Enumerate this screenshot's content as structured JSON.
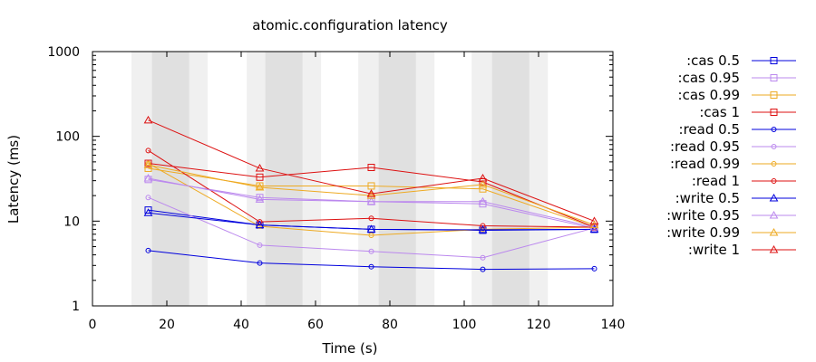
{
  "chart_data": {
    "type": "line",
    "title": "atomic.configuration latency",
    "xlabel": "Time (s)",
    "ylabel": "Latency (ms)",
    "xlim": [
      0,
      140
    ],
    "ylim": [
      1,
      1000
    ],
    "yscale": "log",
    "xticks": [
      "0",
      "20",
      "40",
      "60",
      "80",
      "100",
      "120",
      "140"
    ],
    "yticks": [
      "1",
      "10",
      "100",
      "1000"
    ],
    "grid": false,
    "legend_position": "right",
    "shaded_bands": [
      {
        "x0": 10.5,
        "x1": 31,
        "shade": "light"
      },
      {
        "x0": 16,
        "x1": 26,
        "shade": "dark"
      },
      {
        "x0": 41.5,
        "x1": 61.5,
        "shade": "light"
      },
      {
        "x0": 46.5,
        "x1": 56.5,
        "shade": "dark"
      },
      {
        "x0": 71.5,
        "x1": 92,
        "shade": "light"
      },
      {
        "x0": 77,
        "x1": 87,
        "shade": "dark"
      },
      {
        "x0": 102,
        "x1": 122.5,
        "shade": "light"
      },
      {
        "x0": 107.5,
        "x1": 117.5,
        "shade": "dark"
      }
    ],
    "series": [
      {
        "name": ":cas 0.5",
        "color": "#0000dd",
        "marker": "square",
        "points": [
          [
            15,
            13.5
          ],
          [
            45,
            9
          ],
          [
            75,
            8
          ],
          [
            105,
            7.8
          ],
          [
            135,
            8
          ]
        ]
      },
      {
        "name": ":cas 0.95",
        "color": "#bb88ee",
        "marker": "square",
        "points": [
          [
            15,
            31
          ],
          [
            45,
            19
          ],
          [
            75,
            17
          ],
          [
            105,
            16
          ],
          [
            135,
            8.2
          ]
        ]
      },
      {
        "name": ":cas 0.99",
        "color": "#eeaa22",
        "marker": "square",
        "points": [
          [
            15,
            42
          ],
          [
            45,
            26
          ],
          [
            75,
            26
          ],
          [
            105,
            24
          ],
          [
            135,
            8.5
          ]
        ]
      },
      {
        "name": ":cas 1",
        "color": "#dd1111",
        "marker": "square",
        "points": [
          [
            15,
            48
          ],
          [
            45,
            33
          ],
          [
            75,
            43
          ],
          [
            105,
            29
          ],
          [
            135,
            8.5
          ]
        ]
      },
      {
        "name": ":read 0.5",
        "color": "#0000dd",
        "marker": "circle",
        "points": [
          [
            15,
            4.5
          ],
          [
            45,
            3.2
          ],
          [
            75,
            2.9
          ],
          [
            105,
            2.7
          ],
          [
            135,
            2.75
          ]
        ]
      },
      {
        "name": ":read 0.95",
        "color": "#bb88ee",
        "marker": "circle",
        "points": [
          [
            15,
            19
          ],
          [
            45,
            5.2
          ],
          [
            75,
            4.4
          ],
          [
            105,
            3.7
          ],
          [
            135,
            8.3
          ]
        ]
      },
      {
        "name": ":read 0.99",
        "color": "#eeaa22",
        "marker": "circle",
        "points": [
          [
            15,
            48
          ],
          [
            45,
            8.7
          ],
          [
            75,
            6.8
          ],
          [
            105,
            8
          ],
          [
            135,
            8.5
          ]
        ]
      },
      {
        "name": ":read 1",
        "color": "#dd1111",
        "marker": "circle",
        "points": [
          [
            15,
            68
          ],
          [
            45,
            9.8
          ],
          [
            75,
            10.8
          ],
          [
            105,
            8.8
          ],
          [
            135,
            8.5
          ]
        ]
      },
      {
        "name": ":write 0.5",
        "color": "#0000dd",
        "marker": "triangle",
        "points": [
          [
            15,
            12.5
          ],
          [
            45,
            9
          ],
          [
            75,
            8
          ],
          [
            105,
            7.9
          ],
          [
            135,
            8
          ]
        ]
      },
      {
        "name": ":write 0.95",
        "color": "#bb88ee",
        "marker": "triangle",
        "points": [
          [
            15,
            32
          ],
          [
            45,
            18
          ],
          [
            75,
            17
          ],
          [
            105,
            17
          ],
          [
            135,
            8.5
          ]
        ]
      },
      {
        "name": ":write 0.99",
        "color": "#eeaa22",
        "marker": "triangle",
        "points": [
          [
            15,
            46
          ],
          [
            45,
            25
          ],
          [
            75,
            20
          ],
          [
            105,
            27
          ],
          [
            135,
            9
          ]
        ]
      },
      {
        "name": ":write 1",
        "color": "#dd1111",
        "marker": "triangle",
        "points": [
          [
            15,
            155
          ],
          [
            45,
            42
          ],
          [
            75,
            21
          ],
          [
            105,
            32
          ],
          [
            135,
            10
          ]
        ]
      }
    ]
  }
}
